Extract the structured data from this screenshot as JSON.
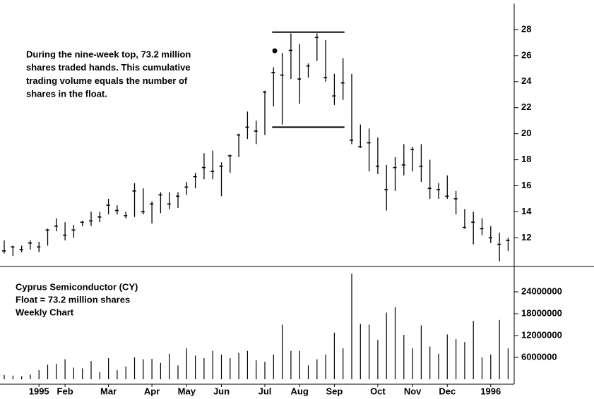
{
  "chart_data": [
    {
      "type": "hlc",
      "annotation": [
        "During the nine-week top, 73.2 million",
        "shares traded hands. This cumulative",
        "trading volume equals the number of",
        "shares in the float."
      ],
      "high": [
        11.8,
        11.4,
        11.4,
        11.8,
        11.7,
        12.7,
        13.5,
        13.2,
        13.0,
        13.3,
        14.0,
        14.0,
        15.0,
        14.5,
        14.0,
        16.2,
        15.8,
        14.8,
        15.5,
        15.5,
        15.5,
        16.3,
        17.0,
        18.5,
        18.7,
        17.8,
        18.4,
        20.0,
        21.7,
        21.0,
        23.3,
        25.1,
        26.2,
        27.7,
        26.9,
        25.4,
        27.7,
        27.2,
        24.6,
        25.8,
        24.6,
        20.7,
        20.4,
        19.7,
        17.6,
        18.2,
        19.2,
        19.0,
        19.2,
        18.0,
        16.2,
        16.8,
        15.6,
        14.2,
        14.0,
        13.5,
        12.9,
        12.4,
        12.0
      ],
      "low": [
        10.8,
        10.6,
        10.9,
        11.1,
        10.9,
        11.4,
        12.5,
        11.8,
        12.0,
        12.9,
        12.9,
        13.2,
        13.8,
        13.8,
        13.5,
        13.6,
        13.8,
        13.1,
        13.9,
        14.2,
        14.3,
        15.3,
        15.8,
        16.5,
        16.5,
        15.2,
        17.0,
        18.2,
        19.6,
        19.2,
        19.9,
        22.1,
        20.7,
        24.2,
        22.3,
        24.3,
        25.6,
        24.0,
        22.2,
        22.6,
        19.2,
        18.9,
        17.1,
        16.9,
        14.1,
        15.6,
        16.8,
        17.1,
        16.3,
        15.0,
        15.0,
        15.0,
        13.8,
        12.7,
        11.5,
        12.2,
        11.6,
        10.2,
        11.0
      ],
      "close": [
        11.0,
        11.3,
        11.1,
        11.6,
        11.3,
        12.6,
        12.9,
        12.2,
        12.6,
        13.2,
        13.3,
        13.6,
        14.5,
        14.1,
        13.7,
        15.6,
        14.0,
        14.6,
        15.3,
        14.6,
        15.2,
        15.9,
        16.7,
        17.4,
        17.1,
        17.5,
        18.3,
        19.9,
        20.5,
        20.2,
        23.2,
        24.7,
        24.5,
        26.4,
        24.2,
        25.2,
        27.4,
        24.3,
        22.9,
        23.9,
        19.5,
        19.0,
        19.3,
        17.5,
        15.7,
        17.4,
        17.6,
        18.8,
        17.5,
        15.8,
        15.7,
        15.2,
        15.0,
        12.8,
        13.2,
        12.7,
        12.0,
        11.5,
        11.8
      ],
      "levels": [
        27.8,
        20.5
      ],
      "ylim": [
        9.8,
        30
      ],
      "yticks": [
        12,
        14,
        16,
        18,
        20,
        22,
        24,
        26,
        28
      ]
    },
    {
      "type": "bar",
      "title": [
        "Cyprus Semiconductor (CY)",
        "Float = 73.2 million shares",
        "Weekly Chart"
      ],
      "categories": [
        null,
        null,
        null,
        null,
        "1995",
        null,
        null,
        "Feb",
        null,
        null,
        null,
        null,
        "Mar",
        null,
        null,
        null,
        null,
        "Apr",
        null,
        null,
        null,
        "May",
        null,
        null,
        null,
        "Jun",
        null,
        null,
        null,
        null,
        "Jul",
        null,
        null,
        null,
        "Aug",
        null,
        null,
        null,
        "Sep",
        null,
        null,
        null,
        null,
        "Oct",
        null,
        null,
        null,
        "Nov",
        null,
        null,
        null,
        "Dec",
        null,
        null,
        null,
        null,
        "1996",
        null,
        null
      ],
      "values": [
        1200000,
        1000000,
        800000,
        1300000,
        2500000,
        4000000,
        4200000,
        5500000,
        3200000,
        3000000,
        5000000,
        2000000,
        5800000,
        2500000,
        3500000,
        6000000,
        5500000,
        5600000,
        4500000,
        7000000,
        3800000,
        8500000,
        6500000,
        5800000,
        7800000,
        6800000,
        5800000,
        7200000,
        7800000,
        5200000,
        4800000,
        6800000,
        15000000,
        7800000,
        7800000,
        3800000,
        5500000,
        6800000,
        12800000,
        8500000,
        29000000,
        15200000,
        15000000,
        10800000,
        18300000,
        19800000,
        12200000,
        8500000,
        14800000,
        9000000,
        7000000,
        12300000,
        11000000,
        10200000,
        16000000,
        6000000,
        6800000,
        16300000,
        8500000
      ],
      "ylim": [
        0,
        30000000
      ],
      "yticks": [
        6000000,
        12000000,
        18000000,
        24000000
      ]
    }
  ]
}
